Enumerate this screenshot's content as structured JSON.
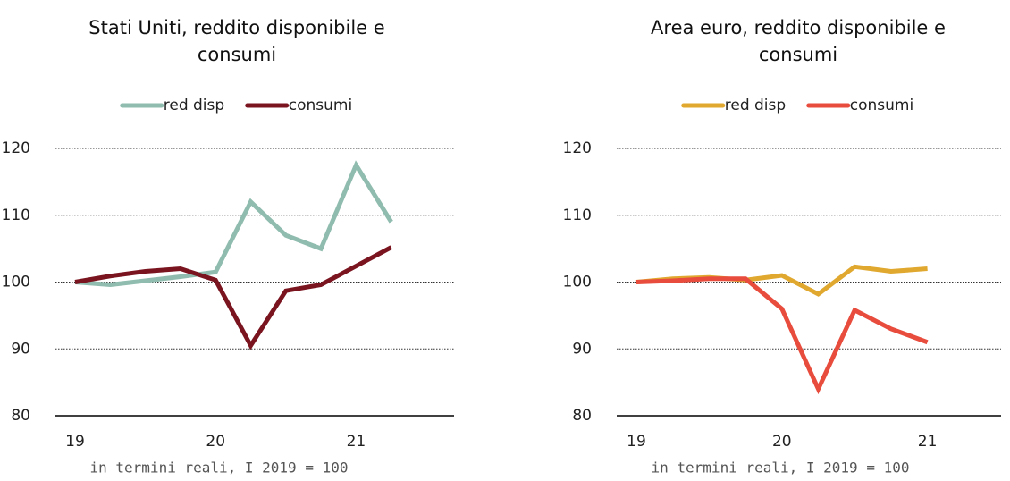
{
  "chart_data": [
    {
      "type": "line",
      "title": "Stati Uniti, reddito disponibile e consumi",
      "categories": [
        "19",
        null,
        null,
        null,
        "20",
        null,
        null,
        null,
        "21",
        null
      ],
      "series": [
        {
          "name": "red disp",
          "color": "#8fbcae",
          "values": [
            100,
            99.6,
            100.2,
            100.8,
            101.5,
            112,
            107,
            105,
            117.5,
            109
          ]
        },
        {
          "name": "consumi",
          "color": "#7a1520",
          "values": [
            100,
            100.9,
            101.6,
            102,
            100.3,
            90.5,
            98.7,
            99.6,
            102.4,
            105.2
          ]
        }
      ],
      "ylim": [
        80,
        120
      ],
      "yticks": [
        80,
        90,
        100,
        110,
        120
      ],
      "grid": true,
      "legend": "top",
      "annotation": "in termini reali, I 2019 = 100"
    },
    {
      "type": "line",
      "title": "Area euro, reddito disponibile e consumi",
      "categories": [
        "19",
        null,
        null,
        null,
        "20",
        null,
        null,
        null,
        "21",
        null
      ],
      "series": [
        {
          "name": "red disp",
          "color": "#e0a82e",
          "values": [
            100,
            100.5,
            100.7,
            100.3,
            101,
            98.2,
            102.3,
            101.6,
            102,
            null
          ]
        },
        {
          "name": "consumi",
          "color": "#e84c3d",
          "values": [
            100,
            100.2,
            100.5,
            100.5,
            96,
            84,
            95.8,
            93,
            91,
            null
          ]
        }
      ],
      "ylim": [
        80,
        120
      ],
      "yticks": [
        80,
        90,
        100,
        110,
        120
      ],
      "grid": true,
      "legend": "top",
      "annotation": "in termini reali, I 2019 = 100"
    }
  ]
}
